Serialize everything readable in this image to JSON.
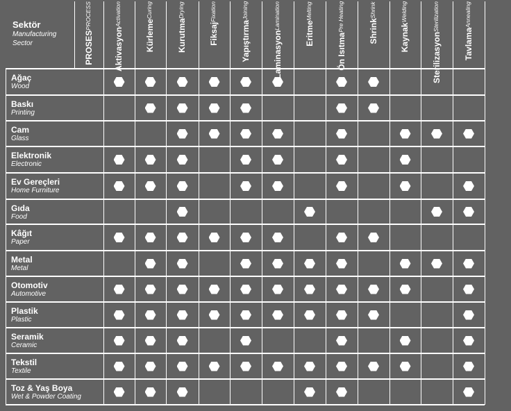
{
  "header": {
    "sector_title": "Sektör",
    "sector_sub": [
      "Manufacturing",
      "Sector"
    ],
    "process_title": "PROSES",
    "process_sub": "PROCESS"
  },
  "processes": [
    {
      "tr": "Aktivasyon",
      "en": "Activation"
    },
    {
      "tr": "Kürleme",
      "en": "Curing"
    },
    {
      "tr": "Kurutma",
      "en": "Drying"
    },
    {
      "tr": "Fiksaj",
      "en": "Fixation"
    },
    {
      "tr": "Yapıştırma",
      "en": "Joining"
    },
    {
      "tr": "Laminasyon",
      "en": "Lamination"
    },
    {
      "tr": "Eritme",
      "en": "Melting"
    },
    {
      "tr": "Ön Isıtma",
      "en": "Pre Heating"
    },
    {
      "tr": "Shrink",
      "en": "Shrink"
    },
    {
      "tr": "Kaynak",
      "en": "Welding"
    },
    {
      "tr": "Sterilizasyon",
      "en": "Sterilization"
    },
    {
      "tr": "Tavlama",
      "en": "Annealing"
    }
  ],
  "sectors": [
    {
      "tr": "Ağaç",
      "en": "Wood",
      "marks": [
        1,
        1,
        1,
        1,
        1,
        1,
        0,
        1,
        1,
        0,
        0,
        0
      ]
    },
    {
      "tr": "Baskı",
      "en": "Printing",
      "marks": [
        0,
        1,
        1,
        1,
        1,
        0,
        0,
        1,
        1,
        0,
        0,
        0
      ]
    },
    {
      "tr": "Cam",
      "en": "Glass",
      "marks": [
        0,
        0,
        1,
        1,
        1,
        1,
        0,
        1,
        0,
        1,
        1,
        1
      ]
    },
    {
      "tr": "Elektronik",
      "en": "Electronic",
      "marks": [
        1,
        1,
        1,
        0,
        1,
        1,
        0,
        1,
        0,
        1,
        0,
        0
      ]
    },
    {
      "tr": "Ev Gereçleri",
      "en": "Home Furniture",
      "marks": [
        1,
        1,
        1,
        0,
        1,
        1,
        0,
        1,
        0,
        1,
        0,
        1
      ]
    },
    {
      "tr": "Gıda",
      "en": "Food",
      "marks": [
        0,
        0,
        1,
        0,
        0,
        0,
        1,
        0,
        0,
        0,
        1,
        1
      ]
    },
    {
      "tr": "Kâğıt",
      "en": "Paper",
      "marks": [
        1,
        1,
        1,
        1,
        1,
        1,
        0,
        1,
        1,
        0,
        0,
        0
      ]
    },
    {
      "tr": "Metal",
      "en": "Metal",
      "marks": [
        0,
        1,
        1,
        0,
        1,
        1,
        1,
        1,
        0,
        1,
        1,
        1
      ]
    },
    {
      "tr": "Otomotiv",
      "en": "Automotive",
      "marks": [
        1,
        1,
        1,
        1,
        1,
        1,
        1,
        1,
        1,
        1,
        0,
        1
      ]
    },
    {
      "tr": "Plastik",
      "en": "Plastic",
      "marks": [
        1,
        1,
        1,
        1,
        1,
        1,
        1,
        1,
        1,
        0,
        0,
        1
      ]
    },
    {
      "tr": "Seramik",
      "en": "Ceramic",
      "marks": [
        1,
        1,
        1,
        0,
        1,
        0,
        0,
        1,
        0,
        1,
        0,
        1
      ]
    },
    {
      "tr": "Tekstil",
      "en": "Textile",
      "marks": [
        1,
        1,
        1,
        1,
        1,
        1,
        1,
        1,
        1,
        1,
        0,
        1
      ]
    },
    {
      "tr": "Toz & Yaş Boya",
      "en": "Wet & Powder Coating",
      "marks": [
        1,
        1,
        1,
        0,
        0,
        0,
        1,
        1,
        0,
        0,
        0,
        1
      ]
    }
  ],
  "colors": {
    "background": "#626262",
    "lines": "#ffffff",
    "mark": "#ffffff"
  },
  "mark_icon": "hexagon-icon"
}
